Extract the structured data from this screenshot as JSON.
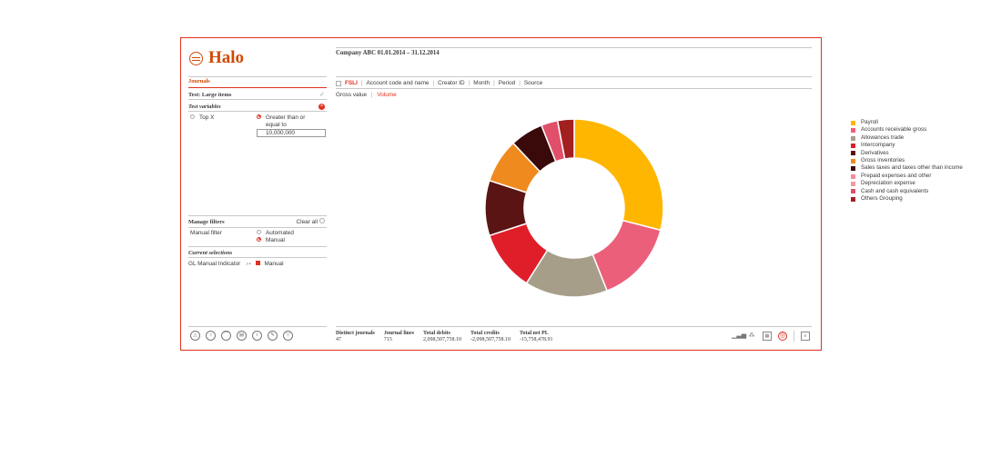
{
  "app": {
    "name": "Halo"
  },
  "sidebar": {
    "tab": "Journals",
    "test_name": "Test: Large items",
    "test_variables_label": "Test variables",
    "top_x_label": "Top X",
    "gte_label_line1": "Greater than or",
    "gte_label_line2": "equal to",
    "threshold_value": "10,000,000",
    "manage_filters_label": "Manage filters",
    "clear_all_label": "Clear all",
    "manual_filter_label": "Manual filter",
    "manual_filter_options": [
      "Automated",
      "Manual"
    ],
    "current_selections_label": "Current selections",
    "selection_name": "GL Manual Indicator",
    "selection_value": "Manual"
  },
  "header": {
    "company_period": "Company ABC 01.01.2014 – 31.12.2014"
  },
  "dimension_tabs": [
    "FSLI",
    "Account code and name",
    "Creator ID",
    "Month",
    "Period",
    "Source"
  ],
  "measure_tabs": [
    "Gross value",
    "Volume"
  ],
  "chart_data": {
    "type": "pie",
    "donut": true,
    "categories": [
      "Payroll",
      "Accounts receivable gross",
      "Allowances trade",
      "Intercompany",
      "Derivatives",
      "Gross inventories",
      "Sales taxes and taxes other than income",
      "Prepaid expenses and other",
      "Depreciation expense",
      "Cash and cash equivalents",
      "Others Grouping"
    ],
    "values": [
      29,
      15,
      15,
      11,
      10,
      8,
      6,
      0,
      0,
      3,
      3
    ],
    "colors": [
      "#FFB600",
      "#EB5F7A",
      "#A79E8A",
      "#E01E2A",
      "#5A1414",
      "#EF8A1E",
      "#3A0A0A",
      "#F5899A",
      "#F09AA8",
      "#E0506A",
      "#A32020"
    ],
    "legend_position": "right"
  },
  "totals": [
    {
      "label": "Distinct journals",
      "value": "47"
    },
    {
      "label": "Journal lines",
      "value": "715"
    },
    {
      "label": "Total debits",
      "value": "2,098,507,758.10"
    },
    {
      "label": "Total credits",
      "value": "-2,098,507,758.10"
    },
    {
      "label": "Total net PL",
      "value": "-15,758,478.91"
    }
  ]
}
